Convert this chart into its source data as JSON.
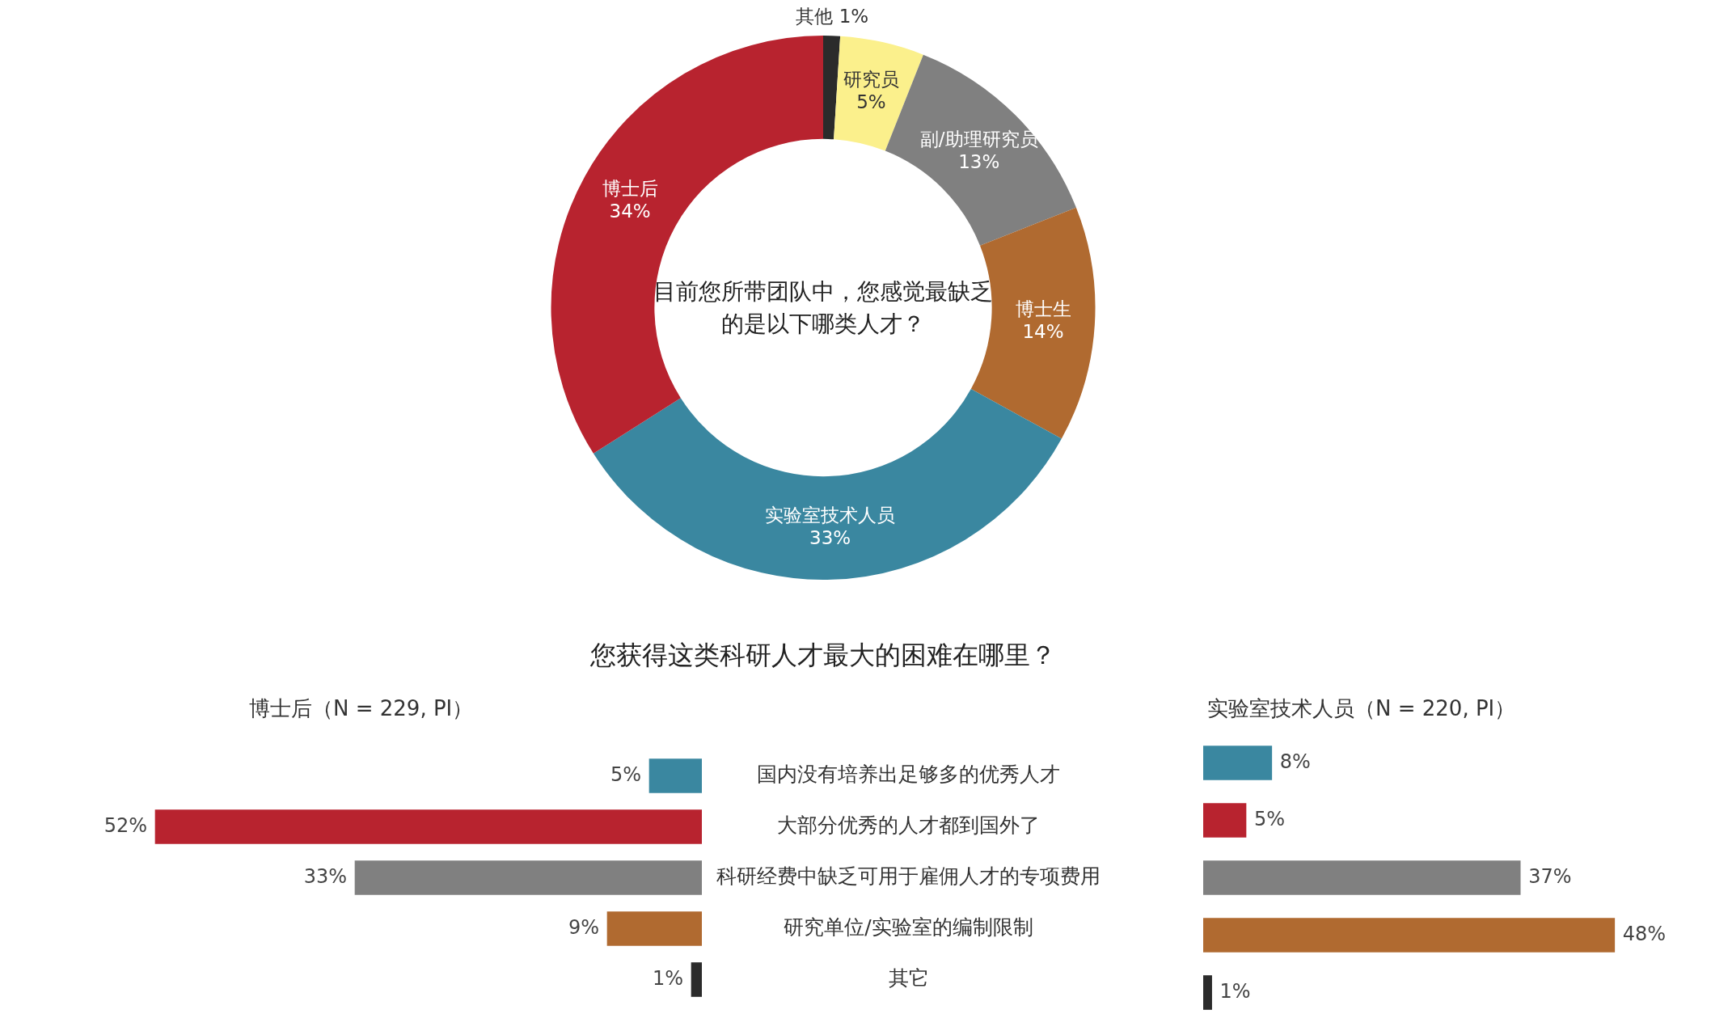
{
  "chart_data": [
    {
      "type": "donut",
      "title": "目前您所带团队中，您感觉最缺乏的是以下哪类人才？",
      "categories": [
        "其他",
        "研究员",
        "副/助理研究员",
        "博士生",
        "实验室技术人员",
        "博士后"
      ],
      "values": [
        1,
        5,
        13,
        14,
        33,
        34
      ],
      "value_labels": [
        "1%",
        "5%",
        "13%",
        "14%",
        "33%",
        "34%"
      ],
      "colors": [
        "#2b2b2b",
        "#fbf08c",
        "#808080",
        "#b06a30",
        "#3a87a0",
        "#b8232f"
      ]
    },
    {
      "type": "bar",
      "orientation": "horizontal",
      "title": "您获得这类科研人才最大的困难在哪里？",
      "subtitle": "博士后（N = 229, PI）",
      "categories": [
        "国内没有培养出足够多的优秀人才",
        "大部分优秀的人才都到国外了",
        "科研经费中缺乏可用于雇佣人才的专项费用",
        "研究单位/实验室的编制限制",
        "其它"
      ],
      "values": [
        5,
        52,
        33,
        9,
        1
      ],
      "value_labels": [
        "5%",
        "52%",
        "33%",
        "9%",
        "1%"
      ],
      "colors": [
        "#3a87a0",
        "#b8232f",
        "#808080",
        "#b06a30",
        "#2b2b2b"
      ],
      "tick_labels": "y"
    },
    {
      "type": "bar",
      "orientation": "horizontal",
      "title": "实验室技术人员（N = 220, PI）",
      "categories": [
        null,
        null,
        null,
        null,
        null
      ],
      "tick_labels": false,
      "values": [
        8,
        5,
        37,
        48,
        1
      ],
      "value_labels": [
        "8%",
        "5%",
        "37%",
        "48%",
        "1%"
      ],
      "colors": [
        "#3a87a0",
        "#b8232f",
        "#808080",
        "#b06a30",
        "#2b2b2b"
      ]
    }
  ]
}
